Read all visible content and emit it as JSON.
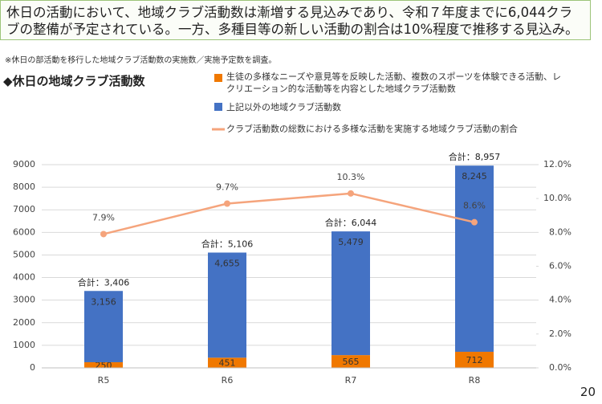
{
  "chart_data": {
    "type": "bar",
    "stacked": true,
    "title": "休日の活動において、地域クラブ活動数は漸増する見込みであり、令和７年度までに6,044クラブの整備が予定されている。一方、多種目等の新しい活動の割合は10%程度で推移する見込み。",
    "note": "※休日の部活動を移行した地域クラブ活動数の実施数／実施予定数を調査。",
    "subtitle": "◆休日の地域クラブ活動数",
    "categories": [
      "R5",
      "R6",
      "R7",
      "R8"
    ],
    "series": [
      {
        "name": "生徒の多様なニーズや意見等を反映した活動、複数のスポーツを体験できる活動、レクリエーション的な活動等を内容とした地域クラブ活動数",
        "type": "bar",
        "color": "#f07800",
        "values": [
          250,
          451,
          565,
          712
        ]
      },
      {
        "name": "上記以外の地域クラブ活動数",
        "type": "bar",
        "color": "#4472c4",
        "values": [
          3156,
          4655,
          5479,
          8245
        ],
        "value_labels": [
          "3,156",
          "4,655",
          "5,479",
          "8,245"
        ]
      },
      {
        "name": "クラブ活動数の総数における多様な活動を実施する地域クラブ活動の割合",
        "type": "line",
        "axis": "y2",
        "color": "#f5a47c",
        "values": [
          7.9,
          9.7,
          10.3,
          8.6
        ],
        "value_labels": [
          "7.9%",
          "9.7%",
          "10.3%",
          "8.6%"
        ]
      }
    ],
    "total_labels": [
      "合計：3,406",
      "合計：5,106",
      "合計：6,044",
      "合計：8,957"
    ],
    "ylim": [
      0,
      9000
    ],
    "yticks": [
      0,
      1000,
      2000,
      3000,
      4000,
      5000,
      6000,
      7000,
      8000,
      9000
    ],
    "y2lim": [
      0,
      12
    ],
    "y2ticks": [
      {
        "value": 0,
        "label": "0.0%"
      },
      {
        "value": 2,
        "label": "2.0%"
      },
      {
        "value": 4,
        "label": "4.0%"
      },
      {
        "value": 6,
        "label": "6.0%"
      },
      {
        "value": 8,
        "label": "8.0%"
      },
      {
        "value": 10,
        "label": "10.0%"
      },
      {
        "value": 12,
        "label": "12.0%"
      }
    ],
    "grid": true
  },
  "page_number": "20"
}
